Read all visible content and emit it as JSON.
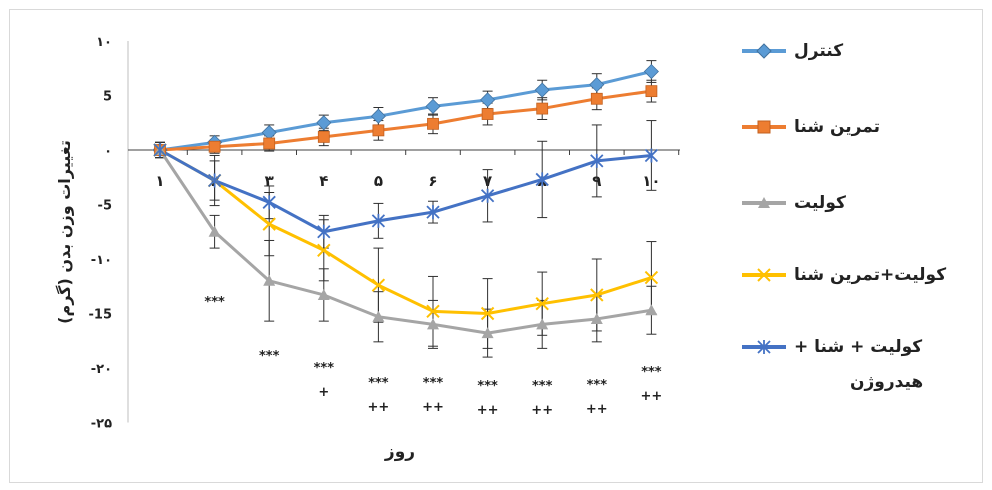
{
  "chart_data": {
    "type": "line",
    "xlabel": "روز",
    "ylabel": "تغییرات وزن بدن (گرم)",
    "categories": [
      "۱",
      "۲",
      "۳",
      "۴",
      "۵",
      "۶",
      "۷",
      "۸",
      "۹",
      "۱۰"
    ],
    "y_ticks": [
      {
        "value": 10,
        "label": "۱۰"
      },
      {
        "value": 5,
        "label": "5"
      },
      {
        "value": 0,
        "label": "۰"
      },
      {
        "value": -5,
        "label": "-5"
      },
      {
        "value": -10,
        "label": "-۱۰"
      },
      {
        "value": -15,
        "label": "-15"
      },
      {
        "value": -20,
        "label": "-۲۰"
      },
      {
        "value": -25,
        "label": "-۲۵"
      }
    ],
    "ylim": [
      -25,
      10
    ],
    "grid": false,
    "legend_position": "right",
    "series": [
      {
        "name": "کنترل",
        "color": "#5b9bd5",
        "marker": "diamond",
        "values": [
          0,
          0.7,
          1.6,
          2.5,
          3.1,
          4.0,
          4.6,
          5.5,
          6.0,
          7.2
        ],
        "errors": [
          0.7,
          0.6,
          0.7,
          0.7,
          0.8,
          0.8,
          0.8,
          0.9,
          1.0,
          1.0
        ]
      },
      {
        "name": "تمرین شنا",
        "color": "#ed7d31",
        "marker": "square",
        "values": [
          0,
          0.3,
          0.6,
          1.2,
          1.8,
          2.4,
          3.3,
          3.8,
          4.7,
          5.4
        ],
        "errors": [
          0.7,
          0.6,
          0.7,
          0.8,
          0.9,
          0.9,
          1.0,
          1.0,
          1.0,
          1.0
        ]
      },
      {
        "name": "کولیت",
        "color": "#a5a5a5",
        "marker": "triangle",
        "values": [
          0,
          -7.5,
          -12.0,
          -13.3,
          -15.3,
          -16.0,
          -16.8,
          -16.0,
          -15.5,
          -14.7
        ],
        "errors": [
          0.7,
          1.5,
          3.7,
          2.4,
          2.3,
          2.2,
          2.2,
          2.2,
          2.1,
          2.2
        ]
      },
      {
        "name": "کولیت+تمرین شنا",
        "color": "#ffc000",
        "marker": "x",
        "values": [
          0,
          -2.8,
          -6.8,
          -9.2,
          -12.4,
          -14.8,
          -15.0,
          -14.1,
          -13.3,
          -11.7
        ],
        "errors": [
          0.7,
          1.8,
          2.9,
          2.8,
          3.4,
          3.2,
          3.2,
          2.9,
          3.3,
          3.3
        ]
      },
      {
        "name": "کولیت + شنا + هیدروژن",
        "color": "#4472c4",
        "marker": "star",
        "values": [
          0,
          -2.8,
          -4.8,
          -7.5,
          -6.5,
          -5.7,
          -4.2,
          -2.7,
          -1.0,
          -0.5
        ],
        "errors": [
          0.7,
          2.3,
          1.5,
          1.5,
          1.6,
          1.0,
          2.4,
          3.5,
          3.3,
          3.2
        ]
      }
    ],
    "annotations": [
      {
        "day": 2,
        "lines": [
          "***"
        ]
      },
      {
        "day": 3,
        "lines": [
          "***"
        ]
      },
      {
        "day": 4,
        "lines": [
          "***",
          "+"
        ]
      },
      {
        "day": 5,
        "lines": [
          "***",
          "++"
        ]
      },
      {
        "day": 6,
        "lines": [
          "***",
          "++"
        ]
      },
      {
        "day": 7,
        "lines": [
          "***",
          "++"
        ]
      },
      {
        "day": 8,
        "lines": [
          "***",
          "++"
        ]
      },
      {
        "day": 9,
        "lines": [
          "***",
          "++"
        ]
      },
      {
        "day": 10,
        "lines": [
          "***",
          "++"
        ]
      }
    ]
  },
  "legend": {
    "items": [
      {
        "label": "کنترل",
        "color": "#5b9bd5",
        "marker": "diamond"
      },
      {
        "label": "تمرین شنا",
        "color": "#ed7d31",
        "marker": "square"
      },
      {
        "label": "کولیت",
        "color": "#a5a5a5",
        "marker": "triangle"
      },
      {
        "label": "کولیت+تمرین شنا",
        "color": "#ffc000",
        "marker": "x"
      },
      {
        "label": "کولیت + شنا +",
        "color": "#4472c4",
        "marker": "star"
      }
    ],
    "last_item_second_line": "هیدروژن"
  }
}
